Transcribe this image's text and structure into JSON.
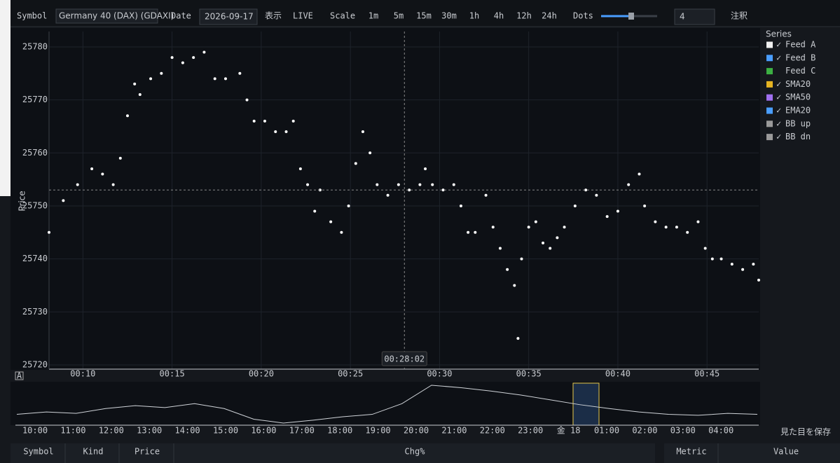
{
  "toolbar": {
    "symbol_label": "Symbol",
    "symbol": "Germany 40 (DAX) (GDAXI)",
    "date_label": "Date",
    "date": "2026-09-17",
    "view": "表示",
    "live": "LIVE",
    "scale_label": "Scale",
    "scales": [
      "1m",
      "5m",
      "15m",
      "30m",
      "1h",
      "4h",
      "12h",
      "24h"
    ],
    "dots_label": "Dots",
    "dots": 4,
    "annotate": "注釈"
  },
  "chart_data": {
    "type": "scatter",
    "y_label": "Price",
    "color": "#ffffff",
    "grid": true,
    "xlim": [
      8.1,
      47.9
    ],
    "ylim": [
      25719.2,
      25782.9
    ],
    "xticks": [
      {
        "value": 10,
        "label": "00:10"
      },
      {
        "value": 15,
        "label": "00:15"
      },
      {
        "value": 20,
        "label": "00:20"
      },
      {
        "value": 25,
        "label": "00:25"
      },
      {
        "value": 30,
        "label": "00:30"
      },
      {
        "value": 35,
        "label": "00:35"
      },
      {
        "value": 40,
        "label": "00:40"
      },
      {
        "value": 45,
        "label": "00:45"
      }
    ],
    "yticks": [
      25720,
      25730,
      25740,
      25750,
      25760,
      25770,
      25780
    ],
    "crosshair": {
      "x": 28.03,
      "y": 25753,
      "label": "00:28:02"
    },
    "x": [
      8.1,
      8.9,
      9.7,
      10.5,
      11.1,
      11.7,
      12.1,
      12.5,
      12.9,
      13.2,
      13.8,
      14.4,
      15.0,
      15.6,
      16.2,
      16.8,
      17.4,
      18.0,
      18.8,
      19.2,
      19.6,
      20.2,
      20.8,
      21.4,
      21.8,
      22.2,
      22.6,
      23.0,
      23.3,
      23.9,
      24.5,
      24.9,
      25.3,
      25.7,
      26.1,
      26.5,
      27.1,
      27.7,
      28.3,
      28.9,
      29.2,
      29.6,
      30.2,
      30.8,
      31.2,
      31.6,
      32.0,
      32.6,
      33.0,
      33.4,
      33.8,
      34.2,
      34.4,
      34.6,
      35.0,
      35.4,
      35.8,
      36.2,
      36.6,
      37.0,
      37.6,
      38.2,
      38.8,
      39.4,
      40.0,
      40.6,
      41.2,
      41.5,
      42.1,
      42.7,
      43.3,
      43.9,
      44.5,
      44.9,
      45.3,
      45.8,
      46.4,
      47.0,
      47.6,
      47.9
    ],
    "values": [
      25745,
      25751,
      25754,
      25757,
      25756,
      25754,
      25759,
      25767,
      25773,
      25771,
      25774,
      25775,
      25778,
      25777,
      25778,
      25779,
      25774,
      25774,
      25775,
      25770,
      25766,
      25766,
      25764,
      25764,
      25766,
      25757,
      25754,
      25749,
      25753,
      25747,
      25745,
      25750,
      25758,
      25764,
      25760,
      25754,
      25752,
      25754,
      25753,
      25754,
      25757,
      25754,
      25753,
      25754,
      25750,
      25745,
      25745,
      25752,
      25746,
      25742,
      25738,
      25735,
      25725,
      25740,
      25746,
      25747,
      25743,
      25742,
      25744,
      25746,
      25750,
      25753,
      25752,
      25748,
      25749,
      25754,
      25756,
      25750,
      25747,
      25746,
      25746,
      25745,
      25747,
      25742,
      25740,
      25740,
      25739,
      25738,
      25739,
      25736
    ]
  },
  "legend": {
    "title": "Series",
    "check": "✓",
    "items": [
      {
        "name": "Feed A",
        "color": "#f0f0f0",
        "checked": true
      },
      {
        "name": "Feed B",
        "color": "#4a9eff",
        "checked": true
      },
      {
        "name": "Feed C",
        "color": "#3cb043",
        "checked": false
      },
      {
        "name": "SMA20",
        "color": "#e6b422",
        "checked": true
      },
      {
        "name": "SMA50",
        "color": "#a070f0",
        "checked": true
      },
      {
        "name": "EMA20",
        "color": "#4a9eff",
        "checked": true
      },
      {
        "name": "BB up",
        "color": "#9a9a9a",
        "checked": true
      },
      {
        "name": "BB dn",
        "color": "#9a9a9a",
        "checked": true
      }
    ]
  },
  "navigator": {
    "ticks": [
      "10:00",
      "11:00",
      "12:00",
      "13:00",
      "14:00",
      "15:00",
      "16:00",
      "17:00",
      "18:00",
      "19:00",
      "20:00",
      "21:00",
      "22:00",
      "23:00",
      "金 18",
      "01:00",
      "02:00",
      "03:00",
      "04:00"
    ],
    "values": [
      25700,
      25705,
      25702,
      25712,
      25718,
      25714,
      25722,
      25712,
      25690,
      25682,
      25688,
      25695,
      25700,
      25722,
      25760,
      25755,
      25748,
      25740,
      25730,
      25720,
      25712,
      25705,
      25700,
      25698,
      25702,
      25700
    ]
  },
  "save": "見た目を保存",
  "table": {
    "left_headers": [
      "Symbol",
      "Kind",
      "Price",
      "Chg%"
    ],
    "right_headers": [
      "Metric",
      "Value"
    ]
  }
}
